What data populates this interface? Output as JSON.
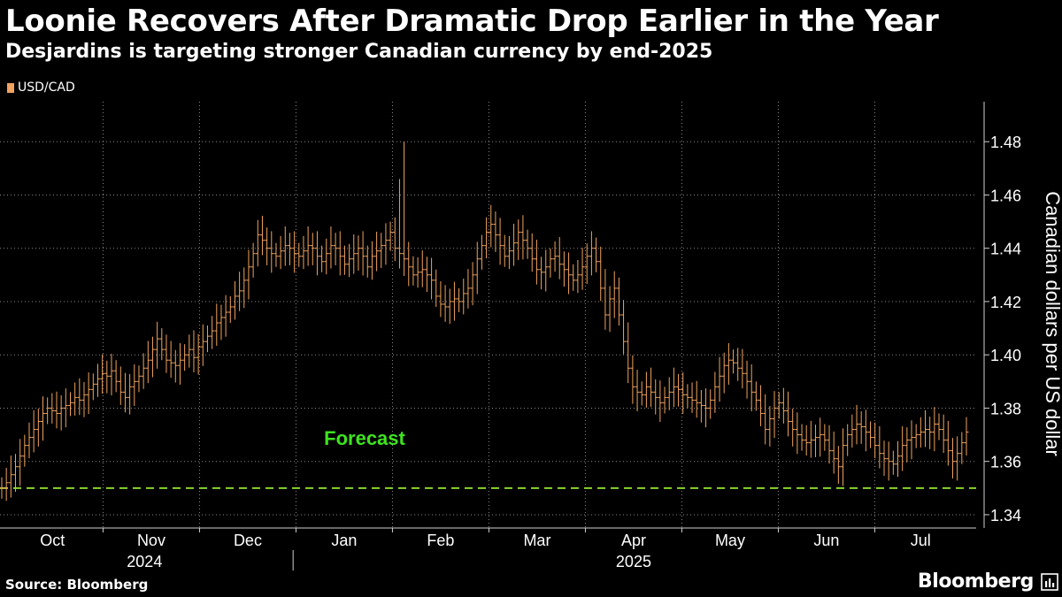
{
  "header": {
    "title": "Loonie Recovers After Dramatic Drop Earlier in the Year",
    "subtitle": "Desjardins is targeting stronger Canadian currency by end-2025"
  },
  "legend": {
    "label": "USD/CAD",
    "color": "#f0a35e"
  },
  "footer": {
    "source": "Source: Bloomberg",
    "brand": "Bloomberg"
  },
  "colors": {
    "series": "#f0a35e",
    "forecast": "#8ad52e",
    "forecast_label": "#3ee41f",
    "grid": "#8a8a8a",
    "text": "#ffffff"
  },
  "chart_data": {
    "type": "line",
    "subtype": "ohlc",
    "title": "Loonie Recovers After Dramatic Drop Earlier in the Year",
    "subtitle": "Desjardins is targeting stronger Canadian currency by end-2025",
    "ylabel": "Canadian dollars per US dollar",
    "xlabel": "",
    "ylim": [
      1.335,
      1.495
    ],
    "yticks": [
      1.34,
      1.36,
      1.38,
      1.4,
      1.42,
      1.44,
      1.46,
      1.48
    ],
    "ytick_labels": [
      "1.34",
      "1.36",
      "1.38",
      "1.40",
      "1.42",
      "1.44",
      "1.46",
      "1.48"
    ],
    "months": [
      "Oct",
      "Nov",
      "Dec",
      "Jan",
      "Feb",
      "Mar",
      "Apr",
      "May",
      "Jun",
      "Jul"
    ],
    "years": [
      "2024",
      "2025"
    ],
    "grid": true,
    "legend_position": "top-left",
    "forecast": {
      "label": "Forecast",
      "value": 1.35
    },
    "series": [
      {
        "name": "USD/CAD",
        "start": "2024-10-01",
        "values": [
          1.35,
          1.352,
          1.355,
          1.358,
          1.362,
          1.366,
          1.369,
          1.372,
          1.375,
          1.378,
          1.38,
          1.379,
          1.378,
          1.38,
          1.381,
          1.382,
          1.384,
          1.383,
          1.385,
          1.387,
          1.389,
          1.391,
          1.393,
          1.392,
          1.394,
          1.39,
          1.386,
          1.384,
          1.388,
          1.39,
          1.392,
          1.395,
          1.398,
          1.402,
          1.406,
          1.402,
          1.398,
          1.397,
          1.396,
          1.398,
          1.4,
          1.402,
          1.399,
          1.403,
          1.405,
          1.407,
          1.409,
          1.412,
          1.414,
          1.416,
          1.418,
          1.422,
          1.424,
          1.428,
          1.433,
          1.438,
          1.445,
          1.443,
          1.44,
          1.438,
          1.437,
          1.439,
          1.441,
          1.44,
          1.438,
          1.437,
          1.439,
          1.441,
          1.44,
          1.437,
          1.435,
          1.438,
          1.441,
          1.44,
          1.437,
          1.434,
          1.436,
          1.438,
          1.44,
          1.437,
          1.433,
          1.437,
          1.439,
          1.441,
          1.443,
          1.446,
          1.44,
          1.438,
          1.436,
          1.433,
          1.43,
          1.431,
          1.432,
          1.43,
          1.428,
          1.422,
          1.419,
          1.418,
          1.42,
          1.421,
          1.42,
          1.423,
          1.425,
          1.43,
          1.436,
          1.441,
          1.446,
          1.449,
          1.445,
          1.441,
          1.437,
          1.439,
          1.442,
          1.446,
          1.443,
          1.44,
          1.436,
          1.432,
          1.431,
          1.433,
          1.436,
          1.437,
          1.434,
          1.432,
          1.43,
          1.428,
          1.43,
          1.433,
          1.437,
          1.44,
          1.435,
          1.425,
          1.415,
          1.421,
          1.425,
          1.415,
          1.405,
          1.395,
          1.388,
          1.386,
          1.385,
          1.388,
          1.386,
          1.384,
          1.382,
          1.384,
          1.386,
          1.388,
          1.387,
          1.385,
          1.384,
          1.383,
          1.382,
          1.381,
          1.38,
          1.383,
          1.388,
          1.392,
          1.396,
          1.398,
          1.397,
          1.395,
          1.393,
          1.39,
          1.386,
          1.383,
          1.378,
          1.372,
          1.376,
          1.38,
          1.382,
          1.379,
          1.375,
          1.372,
          1.37,
          1.368,
          1.367,
          1.368,
          1.369,
          1.37,
          1.368,
          1.364,
          1.361,
          1.358,
          1.366,
          1.37,
          1.372,
          1.374,
          1.373,
          1.371,
          1.369,
          1.366,
          1.363,
          1.361,
          1.36,
          1.359,
          1.362,
          1.366,
          1.368,
          1.369,
          1.37,
          1.371,
          1.372,
          1.371,
          1.374,
          1.372,
          1.368,
          1.364,
          1.36,
          1.363,
          1.367,
          1.371
        ]
      }
    ]
  }
}
